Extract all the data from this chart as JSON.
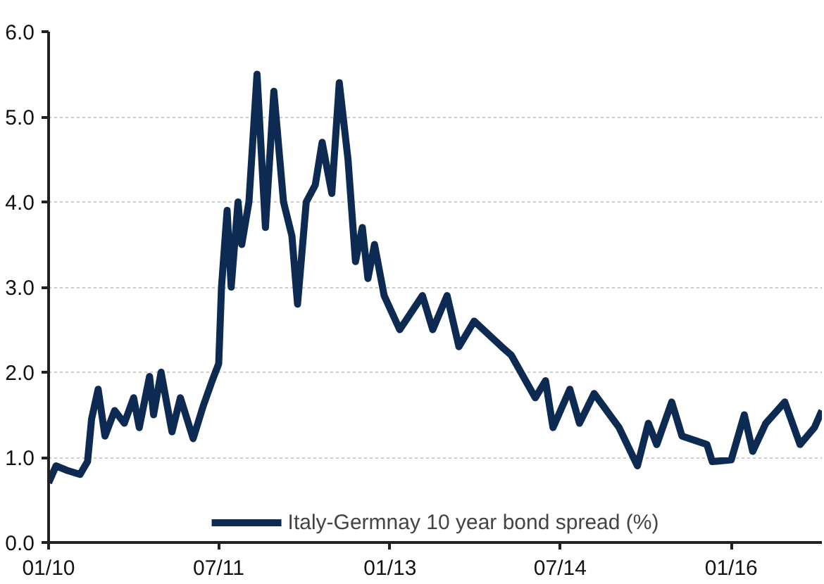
{
  "chart_data": {
    "type": "line",
    "x": [
      "2010-01-01",
      "2010-01-25",
      "2010-02-27",
      "2010-04-12",
      "2010-05-06",
      "2010-05-19",
      "2010-06-09",
      "2010-07-01",
      "2010-08-01",
      "2010-09-01",
      "2010-10-01",
      "2010-10-19",
      "2010-11-21",
      "2010-12-04",
      "2010-12-28",
      "2011-02-01",
      "2011-02-28",
      "2011-04-10",
      "2011-05-12",
      "2011-06-10",
      "2011-07-01",
      "2011-07-10",
      "2011-07-28",
      "2011-08-10",
      "2011-09-01",
      "2011-09-13",
      "2011-10-06",
      "2011-11-01",
      "2011-11-28",
      "2011-12-25",
      "2012-01-25",
      "2012-02-21",
      "2012-03-10",
      "2012-04-07",
      "2012-05-06",
      "2012-05-28",
      "2012-06-28",
      "2012-07-22",
      "2012-08-19",
      "2012-09-12",
      "2012-10-04",
      "2012-10-22",
      "2012-11-12",
      "2012-12-13",
      "2013-02-01",
      "2013-04-15",
      "2013-05-18",
      "2013-07-03",
      "2013-08-10",
      "2013-09-28",
      "2013-12-25",
      "2014-01-25",
      "2014-04-12",
      "2014-05-15",
      "2014-06-08",
      "2014-08-01",
      "2014-09-01",
      "2014-10-18",
      "2015-01-06",
      "2015-03-06",
      "2015-04-10",
      "2015-05-07",
      "2015-06-24",
      "2015-07-27",
      "2015-10-15",
      "2015-11-01",
      "2016-01-01",
      "2016-02-12",
      "2016-03-10",
      "2016-04-21",
      "2016-06-21",
      "2016-08-09",
      "2016-09-24",
      "2016-10-18"
    ],
    "series": [
      {
        "name": "Italy-Germnay 10 year bond spread (%)",
        "color": "#0d2a52",
        "values": [
          0.7,
          0.9,
          0.85,
          0.8,
          0.95,
          1.45,
          1.8,
          1.25,
          1.55,
          1.4,
          1.7,
          1.35,
          1.95,
          1.5,
          2.0,
          1.3,
          1.7,
          1.22,
          1.6,
          1.9,
          2.1,
          3.0,
          3.9,
          3.0,
          4.0,
          3.5,
          4.0,
          5.5,
          3.7,
          5.3,
          4.0,
          3.6,
          2.8,
          4.0,
          4.2,
          4.7,
          4.1,
          5.4,
          4.5,
          3.3,
          3.7,
          3.1,
          3.5,
          2.9,
          2.5,
          2.9,
          2.5,
          2.9,
          2.3,
          2.6,
          2.3,
          2.2,
          1.7,
          1.9,
          1.35,
          1.8,
          1.4,
          1.75,
          1.35,
          0.9,
          1.4,
          1.15,
          1.65,
          1.25,
          1.15,
          0.95,
          0.97,
          1.5,
          1.07,
          1.4,
          1.65,
          1.15,
          1.35,
          1.55
        ]
      }
    ],
    "xlim": [
      "2010-01-01",
      "2016-10-18"
    ],
    "xticks": [
      {
        "value": "2010-01-01",
        "label": "01/10"
      },
      {
        "value": "2011-07-01",
        "label": "07/11"
      },
      {
        "value": "2013-01-01",
        "label": "01/13"
      },
      {
        "value": "2014-07-01",
        "label": "07/14"
      },
      {
        "value": "2016-01-01",
        "label": "01/16"
      }
    ],
    "ylim": [
      0,
      6
    ],
    "yticks": [
      {
        "value": 0,
        "label": "0.0"
      },
      {
        "value": 1,
        "label": "1.0"
      },
      {
        "value": 2,
        "label": "2.0"
      },
      {
        "value": 3,
        "label": "3.0"
      },
      {
        "value": 4,
        "label": "4.0"
      },
      {
        "value": 5,
        "label": "5.0"
      },
      {
        "value": 6,
        "label": "6.0"
      }
    ],
    "grid": "y",
    "legend": "bottom",
    "line_style": "solid",
    "marker": "none"
  }
}
